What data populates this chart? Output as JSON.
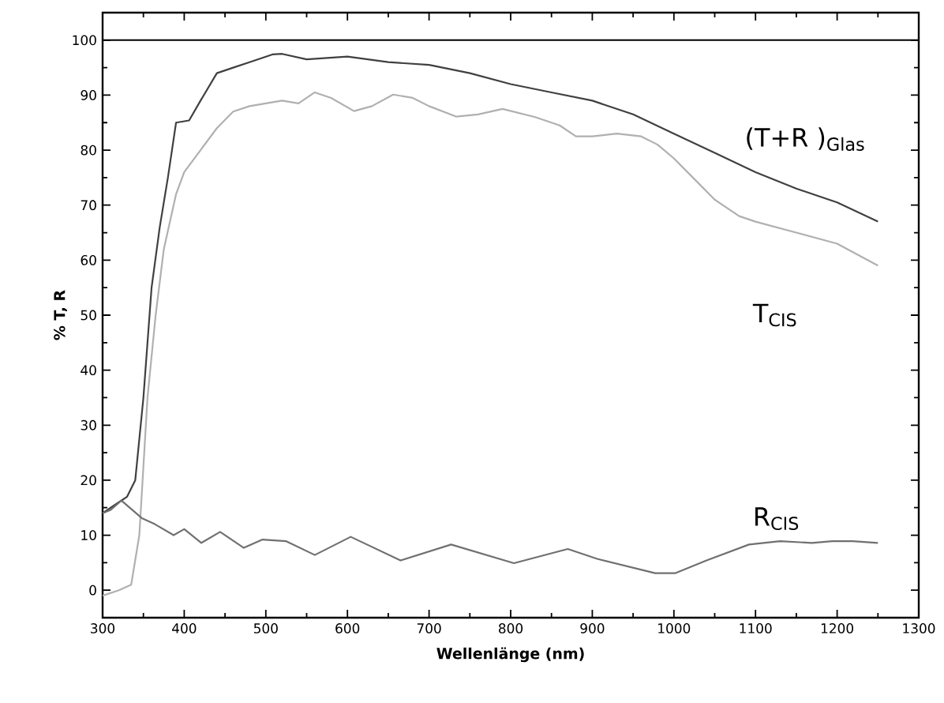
{
  "chart_data": {
    "type": "line",
    "xlabel": "Wellenlänge (nm)",
    "ylabel": "% T, R",
    "xlim": [
      300,
      1300
    ],
    "ylim": [
      -5,
      105
    ],
    "xticks": [
      300,
      400,
      500,
      600,
      700,
      800,
      900,
      1000,
      1100,
      1200,
      1300
    ],
    "yticks": [
      0,
      10,
      20,
      30,
      40,
      50,
      60,
      70,
      80,
      90,
      100
    ],
    "grid": false,
    "legend": false,
    "marker": "none",
    "line_style": "solid",
    "ref_lines": [
      {
        "axis": "y",
        "value": 100,
        "color": "#000000"
      }
    ],
    "series": [
      {
        "name": "(T+R )$_{Glas}$",
        "color": "#404040",
        "x": [
          300,
          320,
          330,
          340,
          350,
          360,
          370,
          380,
          390,
          406,
          420,
          440,
          460,
          480,
          508,
          520,
          550,
          600,
          650,
          700,
          750,
          800,
          850,
          900,
          950,
          1000,
          1050,
          1100,
          1150,
          1200,
          1250
        ],
        "values": [
          14,
          16,
          17,
          20,
          35,
          55,
          66,
          75,
          85,
          85.4,
          89,
          94,
          95,
          96,
          97.4,
          97.5,
          96.5,
          97,
          96,
          95.5,
          94,
          92,
          90.5,
          89,
          86.5,
          83,
          79.5,
          76,
          73,
          70.5,
          67
        ]
      },
      {
        "name": "T$_{CIS}$",
        "color": "#b0b0b0",
        "x": [
          300,
          320,
          335,
          345,
          355,
          365,
          375,
          390,
          400,
          420,
          440,
          460,
          480,
          500,
          520,
          540,
          560,
          580,
          608,
          630,
          656,
          680,
          700,
          733,
          760,
          790,
          830,
          860,
          880,
          900,
          930,
          960,
          980,
          1000,
          1030,
          1050,
          1080,
          1100,
          1150,
          1200,
          1250
        ],
        "values": [
          -1,
          0,
          1,
          10,
          35,
          50,
          62,
          72,
          76,
          80,
          84,
          87,
          88,
          88.5,
          89,
          88.5,
          90.5,
          89.5,
          87.1,
          88,
          90.1,
          89.5,
          88,
          86.1,
          86.5,
          87.5,
          86,
          84.5,
          82.5,
          82.5,
          83,
          82.5,
          81,
          78.5,
          74,
          71,
          68,
          67,
          65,
          63,
          59
        ]
      },
      {
        "name": "R$_{CIS}$",
        "color": "#707070",
        "x": [
          300,
          310,
          323,
          348,
          364,
          387,
          400,
          421,
          444,
          473,
          496,
          525,
          560,
          604,
          665,
          727,
          804,
          870,
          906,
          977,
          1002,
          1040,
          1092,
          1130,
          1169,
          1194,
          1219,
          1250
        ],
        "values": [
          14,
          14.6,
          16.3,
          13.1,
          12,
          10,
          11.1,
          8.6,
          10.6,
          7.7,
          9.2,
          8.9,
          6.4,
          9.7,
          5.4,
          8.3,
          4.9,
          7.5,
          5.7,
          3.1,
          3.1,
          5.4,
          8.3,
          8.9,
          8.6,
          8.9,
          8.9,
          8.6
        ]
      }
    ]
  }
}
